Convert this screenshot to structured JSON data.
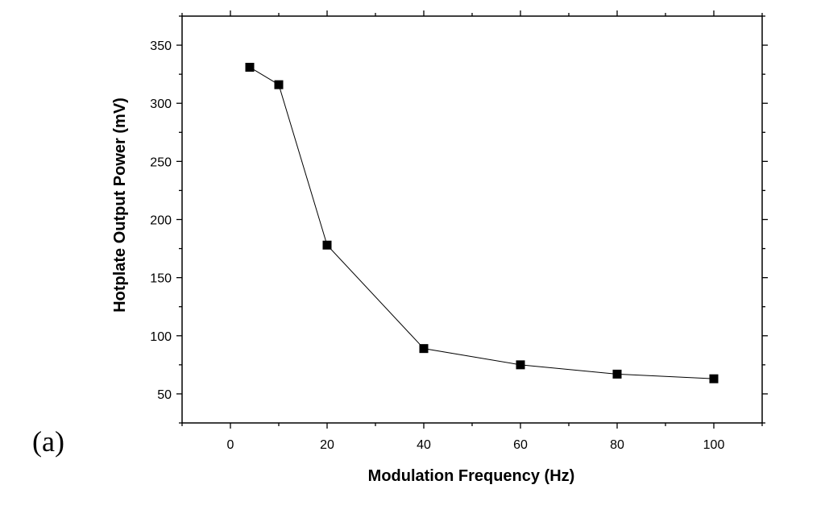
{
  "panel_label": "(a)",
  "chart_data": {
    "type": "line",
    "title": "",
    "xlabel": "Modulation Frequency (Hz)",
    "ylabel": "Hotplate Output Power (mV)",
    "xlim": [
      -10,
      110
    ],
    "ylim": [
      25,
      375
    ],
    "xticks": [
      0,
      20,
      40,
      60,
      80,
      100
    ],
    "yticks": [
      50,
      100,
      150,
      200,
      250,
      300,
      350
    ],
    "x_minor_step": 10,
    "y_minor_step": 25,
    "grid": false,
    "legend": "none",
    "marker": "square",
    "color": "#000000",
    "series": [
      {
        "x": [
          4,
          10,
          20,
          40,
          60,
          80,
          100
        ],
        "y": [
          331,
          316,
          178,
          89,
          75,
          67,
          63
        ]
      }
    ]
  }
}
